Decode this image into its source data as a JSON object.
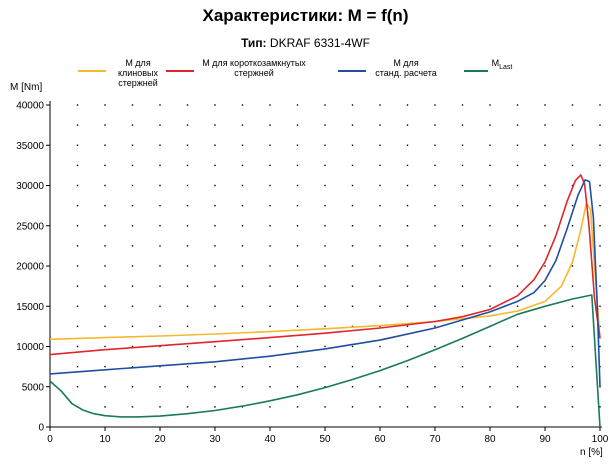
{
  "header": {
    "title_text": "Характеристики:",
    "title_formula": "M = f(n)",
    "subtitle_label": "Тип:",
    "subtitle_value": "DKRAF 6331-4WF"
  },
  "legend": {
    "items": [
      {
        "line1": "M для",
        "line2": "клиновых",
        "line3": "стержней",
        "color": "#f5b82e"
      },
      {
        "line1": "M для короткозамкнутых",
        "line2": "стержней",
        "line3": "",
        "color": "#e0262b"
      },
      {
        "line1": "M для",
        "line2": "станд. расчета",
        "line3": "",
        "color": "#1f4fa0"
      },
      {
        "line1": "M",
        "sub": "Last",
        "line2": "",
        "line3": "",
        "color": "#1a7a5a"
      }
    ]
  },
  "chart_data": {
    "type": "line",
    "ylabel": "M  [Nm]",
    "xlabel": "n  [%]",
    "xlim": [
      0,
      100
    ],
    "ylim": [
      0,
      40000
    ],
    "xticks": [
      0,
      10,
      20,
      30,
      40,
      50,
      60,
      70,
      80,
      90,
      100
    ],
    "yticks": [
      0,
      5000,
      10000,
      15000,
      20000,
      25000,
      30000,
      35000,
      40000
    ],
    "ytick_labels": [
      "0",
      "5000",
      "10000",
      "15000",
      "20000",
      "25000",
      "30000",
      "35000",
      "40000"
    ],
    "grid": "dotted",
    "series": [
      {
        "name": "M для клиновых стержней",
        "color": "#f5b82e",
        "x": [
          0,
          10,
          20,
          30,
          40,
          50,
          60,
          70,
          80,
          85,
          90,
          93,
          95,
          96.5,
          97.5,
          98.3,
          99,
          100
        ],
        "y": [
          10900,
          11100,
          11300,
          11550,
          11850,
          12200,
          12600,
          13100,
          13800,
          14400,
          15600,
          17500,
          20500,
          24500,
          27800,
          27000,
          20000,
          11000
        ]
      },
      {
        "name": "M для короткозамкнутых стержней",
        "color": "#e0262b",
        "x": [
          0,
          10,
          20,
          30,
          40,
          50,
          60,
          70,
          75,
          80,
          85,
          88,
          90,
          92,
          94,
          95.5,
          96.5,
          97.2,
          98,
          99,
          100
        ],
        "y": [
          9000,
          9600,
          10100,
          10600,
          11100,
          11650,
          12300,
          13100,
          13700,
          14600,
          16300,
          18300,
          20500,
          23800,
          28000,
          30600,
          31300,
          30200,
          25000,
          16000,
          11000
        ]
      },
      {
        "name": "M для станд. расчета",
        "color": "#1f4fa0",
        "x": [
          0,
          10,
          20,
          30,
          40,
          50,
          60,
          70,
          80,
          85,
          88,
          90,
          92,
          94,
          96,
          97.3,
          98.1,
          98.8,
          99.5,
          100
        ],
        "y": [
          6600,
          7100,
          7600,
          8100,
          8800,
          9700,
          10800,
          12300,
          14300,
          15600,
          16700,
          18200,
          20700,
          24600,
          28800,
          30700,
          30500,
          26000,
          15000,
          5000
        ]
      },
      {
        "name": "MLast",
        "color": "#1a7a5a",
        "x": [
          0,
          2,
          4,
          6,
          8,
          10,
          13,
          16,
          20,
          25,
          30,
          35,
          40,
          45,
          50,
          55,
          60,
          65,
          70,
          75,
          80,
          85,
          90,
          95,
          98.5,
          100
        ],
        "y": [
          5700,
          4500,
          2900,
          2100,
          1650,
          1400,
          1250,
          1250,
          1350,
          1650,
          2050,
          2600,
          3250,
          4000,
          4900,
          5900,
          7000,
          8250,
          9600,
          11000,
          12500,
          14000,
          15000,
          15900,
          16400,
          0
        ]
      }
    ]
  }
}
